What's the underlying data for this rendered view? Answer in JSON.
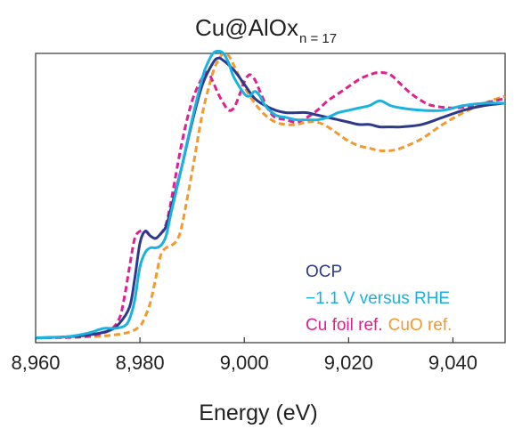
{
  "chart_data": {
    "type": "line",
    "title": {
      "main": "Cu@AlOx",
      "subscript": "n = 17"
    },
    "xlabel": "Energy (eV)",
    "ylabel": "",
    "xlim": [
      8960,
      9050
    ],
    "ylim": [
      -0.02,
      1.2
    ],
    "xticks": [
      8960,
      8980,
      9000,
      9020,
      9040
    ],
    "xtick_labels": [
      "8,960",
      "8,980",
      "9,000",
      "9,020",
      "9,040"
    ],
    "grid": false,
    "legend_position": "bottom-right",
    "series": [
      {
        "name": "OCP",
        "color": "#2d3a8c",
        "dash": "solid",
        "x": [
          8960,
          8966,
          8970,
          8974,
          8976,
          8978,
          8979,
          8980,
          8981,
          8982,
          8983,
          8984,
          8985,
          8986,
          8988,
          8990,
          8992,
          8994,
          8995,
          8996,
          8998,
          9000,
          9002,
          9004,
          9006,
          9008,
          9010,
          9012,
          9014,
          9016,
          9018,
          9020,
          9022,
          9024,
          9026,
          9028,
          9030,
          9034,
          9038,
          9042,
          9046,
          9050
        ],
        "y": [
          0.0,
          0.005,
          0.012,
          0.03,
          0.06,
          0.13,
          0.25,
          0.4,
          0.45,
          0.43,
          0.42,
          0.44,
          0.47,
          0.55,
          0.72,
          0.91,
          1.07,
          1.16,
          1.18,
          1.17,
          1.13,
          1.07,
          1.01,
          0.98,
          0.96,
          0.95,
          0.95,
          0.95,
          0.94,
          0.93,
          0.92,
          0.91,
          0.9,
          0.9,
          0.89,
          0.89,
          0.89,
          0.9,
          0.93,
          0.96,
          0.98,
          0.99
        ]
      },
      {
        "name": "−1.1 V versus RHE",
        "color": "#1ab2e0",
        "dash": "solid",
        "x": [
          8960,
          8966,
          8970,
          8973,
          8975,
          8977,
          8978,
          8979,
          8980,
          8981,
          8982,
          8983,
          8984,
          8985,
          8986,
          8988,
          8990,
          8992,
          8993,
          8994,
          8995,
          8996,
          8997,
          8998,
          9000,
          9001,
          9002,
          9003,
          9004,
          9006,
          9008,
          9010,
          9012,
          9014,
          9016,
          9018,
          9020,
          9022,
          9024,
          9026,
          9028,
          9030,
          9034,
          9038,
          9042,
          9046,
          9050
        ],
        "y": [
          0.0,
          0.005,
          0.02,
          0.04,
          0.04,
          0.05,
          0.08,
          0.16,
          0.3,
          0.36,
          0.38,
          0.38,
          0.39,
          0.43,
          0.53,
          0.72,
          0.92,
          1.1,
          1.16,
          1.2,
          1.21,
          1.2,
          1.16,
          1.1,
          1.03,
          1.02,
          1.04,
          1.02,
          0.98,
          0.94,
          0.93,
          0.92,
          0.92,
          0.92,
          0.93,
          0.95,
          0.96,
          0.97,
          0.98,
          1.0,
          0.98,
          0.97,
          0.96,
          0.96,
          0.98,
          0.99,
          0.99
        ]
      },
      {
        "name": "Cu foil ref.",
        "color": "#e0208e",
        "dash": "dash",
        "x": [
          8960,
          8966,
          8970,
          8974,
          8976,
          8977,
          8978,
          8979,
          8980,
          8981,
          8982,
          8983,
          8984,
          8985,
          8986,
          8988,
          8990,
          8992,
          8993,
          8994,
          8995,
          8996,
          8997,
          8998,
          8999,
          9000,
          9001,
          9002,
          9003,
          9004,
          9005,
          9006,
          9008,
          9010,
          9012,
          9014,
          9016,
          9018,
          9020,
          9022,
          9024,
          9026,
          9028,
          9030,
          9032,
          9034,
          9036,
          9040,
          9044,
          9048,
          9050
        ],
        "y": [
          0.0,
          0.002,
          0.008,
          0.03,
          0.08,
          0.17,
          0.3,
          0.42,
          0.45,
          0.45,
          0.43,
          0.42,
          0.44,
          0.48,
          0.58,
          0.82,
          1.0,
          1.1,
          1.12,
          1.08,
          1.03,
          0.99,
          0.96,
          0.97,
          1.02,
          1.08,
          1.11,
          1.09,
          1.04,
          0.99,
          0.95,
          0.93,
          0.92,
          0.91,
          0.93,
          0.96,
          1.0,
          1.03,
          1.06,
          1.09,
          1.11,
          1.12,
          1.11,
          1.07,
          1.03,
          1.0,
          0.98,
          0.97,
          0.98,
          1.0,
          1.01
        ]
      },
      {
        "name": "CuO ref.",
        "color": "#f29a2e",
        "dash": "dash",
        "x": [
          8960,
          8968,
          8974,
          8978,
          8980,
          8981,
          8982,
          8983,
          8984,
          8985,
          8986,
          8987,
          8988,
          8990,
          8992,
          8994,
          8995,
          8996,
          8997,
          8998,
          9000,
          9002,
          9004,
          9006,
          9008,
          9010,
          9012,
          9014,
          9016,
          9018,
          9020,
          9022,
          9024,
          9026,
          9028,
          9030,
          9034,
          9038,
          9042,
          9046,
          9050
        ],
        "y": [
          0.0,
          0.003,
          0.01,
          0.025,
          0.05,
          0.09,
          0.15,
          0.25,
          0.35,
          0.38,
          0.39,
          0.41,
          0.47,
          0.7,
          0.95,
          1.12,
          1.17,
          1.2,
          1.19,
          1.15,
          1.06,
          0.99,
          0.94,
          0.91,
          0.9,
          0.9,
          0.91,
          0.91,
          0.89,
          0.86,
          0.83,
          0.81,
          0.8,
          0.79,
          0.79,
          0.8,
          0.84,
          0.9,
          0.95,
          0.99,
          1.02
        ]
      }
    ],
    "legend": [
      {
        "label": "OCP",
        "color": "#2d3a8c"
      },
      {
        "label": "−1.1 V versus RHE",
        "color": "#1ab2e0"
      },
      {
        "label": "Cu foil ref.",
        "color": "#e0208e"
      },
      {
        "label": "CuO ref.",
        "color": "#f29a2e"
      }
    ]
  }
}
